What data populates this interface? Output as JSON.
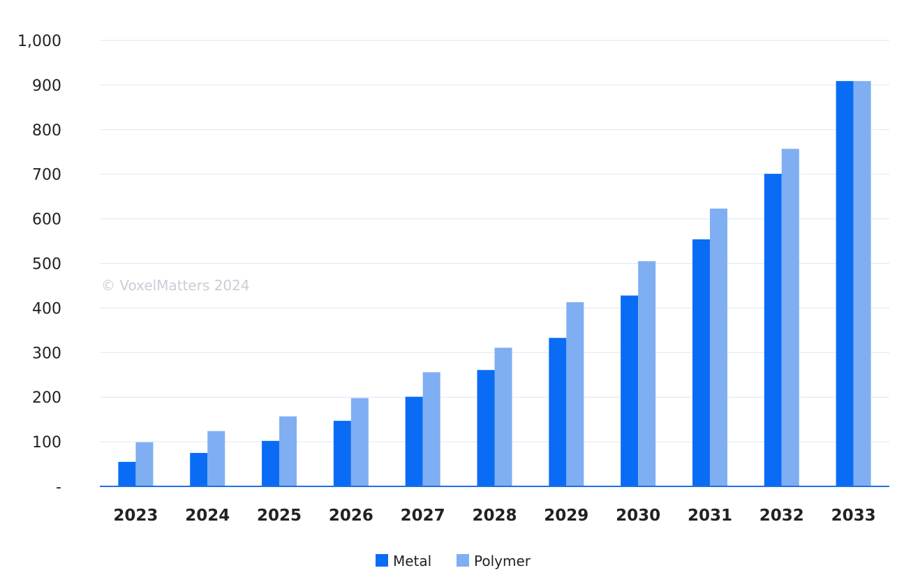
{
  "chart_data": {
    "type": "bar",
    "categories": [
      "2023",
      "2024",
      "2025",
      "2026",
      "2027",
      "2028",
      "2029",
      "2030",
      "2031",
      "2032",
      "2033"
    ],
    "series": [
      {
        "name": "Metal",
        "color": "#0a6cf5",
        "values": [
          55,
          75,
          102,
          147,
          201,
          261,
          333,
          428,
          554,
          701,
          909
        ]
      },
      {
        "name": "Polymer",
        "color": "#7faef2",
        "values": [
          99,
          124,
          157,
          198,
          256,
          311,
          413,
          505,
          623,
          757,
          909
        ]
      }
    ],
    "y_ticks": [
      {
        "value": 0,
        "label": "-"
      },
      {
        "value": 100,
        "label": "100"
      },
      {
        "value": 200,
        "label": "200"
      },
      {
        "value": 300,
        "label": "300"
      },
      {
        "value": 400,
        "label": "400"
      },
      {
        "value": 500,
        "label": "500"
      },
      {
        "value": 600,
        "label": "600"
      },
      {
        "value": 700,
        "label": "700"
      },
      {
        "value": 800,
        "label": "800"
      },
      {
        "value": 900,
        "label": "900"
      },
      {
        "value": 1000,
        "label": "1,000"
      }
    ],
    "ylim": [
      0,
      1000
    ],
    "grid": true,
    "legend_position": "bottom-center",
    "watermark": "© VoxelMatters 2024",
    "title": "",
    "xlabel": "",
    "ylabel": ""
  }
}
